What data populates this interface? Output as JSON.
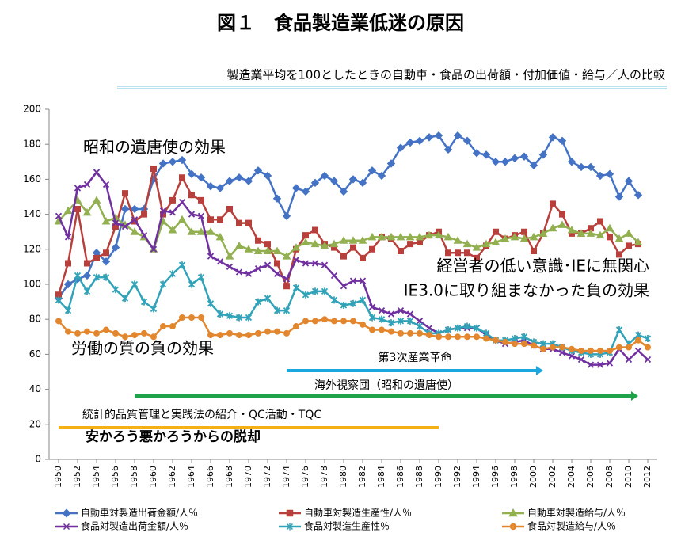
{
  "chart_data": {
    "type": "line",
    "title": "図１　食品製造業低迷の原因",
    "subtitle": "製造業平均を100としたときの自動車・食品の出荷額・付加価値・給与／人の比較",
    "x": [
      1950,
      1951,
      1952,
      1953,
      1954,
      1955,
      1956,
      1957,
      1958,
      1959,
      1960,
      1961,
      1962,
      1963,
      1964,
      1965,
      1966,
      1967,
      1968,
      1969,
      1970,
      1971,
      1972,
      1973,
      1974,
      1975,
      1976,
      1977,
      1978,
      1979,
      1980,
      1981,
      1982,
      1983,
      1984,
      1985,
      1986,
      1987,
      1988,
      1989,
      1990,
      1991,
      1992,
      1993,
      1994,
      1995,
      1996,
      1997,
      1998,
      1999,
      2000,
      2001,
      2002,
      2003,
      2004,
      2005,
      2006,
      2007,
      2008,
      2009,
      2010,
      2011,
      2012
    ],
    "xlim": [
      1949,
      2013
    ],
    "xticks": [
      1950,
      1952,
      1954,
      1956,
      1958,
      1960,
      1962,
      1964,
      1966,
      1968,
      1970,
      1972,
      1974,
      1976,
      1978,
      1980,
      1982,
      1984,
      1986,
      1988,
      1990,
      1992,
      1994,
      1996,
      1998,
      2000,
      2002,
      2004,
      2006,
      2008,
      2010,
      2012
    ],
    "ylim": [
      0,
      200
    ],
    "yticks": [
      0,
      20,
      40,
      60,
      80,
      100,
      120,
      140,
      160,
      180,
      200
    ],
    "series": [
      {
        "name": "自動車対製造出荷金額/人％",
        "color": "#4472c4",
        "marker": "diamond",
        "values": [
          92,
          100,
          103,
          105,
          118,
          113,
          121,
          143,
          143,
          143,
          160,
          169,
          170,
          171,
          163,
          161,
          156,
          155,
          159,
          161,
          159,
          165,
          162,
          149,
          139,
          155,
          153,
          158,
          162,
          159,
          153,
          160,
          158,
          165,
          162,
          169,
          178,
          181,
          182,
          184,
          185,
          177,
          185,
          182,
          175,
          174,
          170,
          170,
          172,
          173,
          168,
          174,
          184,
          182,
          170,
          167,
          167,
          162,
          163,
          150,
          159,
          151,
          null
        ]
      },
      {
        "name": "自動車対製造生産性/人％",
        "color": "#b8403c",
        "marker": "square",
        "values": [
          94,
          112,
          143,
          112,
          115,
          118,
          133,
          152,
          136,
          140,
          166,
          140,
          148,
          161,
          151,
          148,
          137,
          137,
          143,
          135,
          135,
          125,
          123,
          112,
          99,
          120,
          128,
          131,
          123,
          121,
          116,
          121,
          115,
          120,
          127,
          126,
          119,
          123,
          124,
          128,
          130,
          118,
          118,
          118,
          115,
          122,
          130,
          126,
          128,
          130,
          119,
          129,
          146,
          140,
          129,
          129,
          132,
          136,
          127,
          117,
          122,
          123,
          null
        ]
      },
      {
        "name": "自動車対製造給与/人％",
        "color": "#92b050",
        "marker": "triangle",
        "values": [
          136,
          142,
          148,
          141,
          148,
          136,
          138,
          134,
          130,
          127,
          120,
          136,
          131,
          137,
          130,
          130,
          130,
          127,
          116,
          122,
          120,
          119,
          119,
          119,
          116,
          121,
          124,
          123,
          122,
          123,
          125,
          125,
          125,
          127,
          127,
          127,
          127,
          127,
          127,
          128,
          128,
          127,
          125,
          123,
          121,
          123,
          124,
          126,
          127,
          126,
          127,
          129,
          132,
          134,
          131,
          129,
          129,
          128,
          132,
          126,
          129,
          124,
          null
        ]
      },
      {
        "name": "食品対製造出荷金額/人％",
        "color": "#7030a0",
        "marker": "x",
        "values": [
          139,
          127,
          155,
          157,
          164,
          157,
          135,
          133,
          137,
          128,
          120,
          142,
          141,
          147,
          140,
          139,
          116,
          113,
          110,
          107,
          106,
          109,
          111,
          106,
          103,
          114,
          112,
          112,
          111,
          105,
          99,
          102,
          102,
          87,
          85,
          83,
          85,
          83,
          79,
          75,
          72,
          74,
          75,
          75,
          75,
          71,
          68,
          66,
          67,
          68,
          65,
          63,
          63,
          61,
          59,
          57,
          54,
          54,
          55,
          63,
          57,
          62,
          57
        ]
      },
      {
        "name": "食品対製造生産性％",
        "color": "#31a3b8",
        "marker": "star",
        "values": [
          91,
          85,
          105,
          96,
          104,
          104,
          97,
          92,
          100,
          90,
          86,
          100,
          106,
          111,
          100,
          104,
          89,
          83,
          82,
          81,
          81,
          90,
          92,
          85,
          85,
          98,
          94,
          96,
          96,
          91,
          88,
          89,
          91,
          81,
          80,
          78,
          79,
          79,
          76,
          72,
          72,
          74,
          75,
          76,
          75,
          72,
          68,
          68,
          69,
          70,
          67,
          66,
          66,
          64,
          62,
          61,
          60,
          60,
          61,
          74,
          66,
          71,
          69
        ]
      },
      {
        "name": "食品対製造給与/人％",
        "color": "#e3872f",
        "marker": "circle",
        "values": [
          79,
          73,
          72,
          73,
          72,
          74,
          72,
          70,
          71,
          72,
          70,
          76,
          76,
          81,
          81,
          81,
          71,
          71,
          72,
          71,
          71,
          72,
          73,
          73,
          72,
          76,
          79,
          79,
          80,
          79,
          79,
          79,
          77,
          74,
          74,
          73,
          72,
          72,
          72,
          71,
          70,
          70,
          70,
          70,
          70,
          69,
          68,
          67,
          66,
          66,
          65,
          63,
          64,
          64,
          63,
          62,
          62,
          62,
          62,
          64,
          64,
          68,
          64
        ]
      }
    ],
    "annotations": [
      {
        "text": "昭和の遺唐使の効果",
        "color": "#000000"
      },
      {
        "text": "経営者の低い意識･IEに無関心",
        "color": "#000000"
      },
      {
        "text": "IE3.0に取り組まなかった負の効果",
        "color": "#000000"
      },
      {
        "text": "労働の質の負の効果",
        "color": "#000000"
      },
      {
        "text": "安かろう悪かろうからの脱却",
        "color": "#ff0000"
      }
    ],
    "spans": [
      {
        "label": "第3次産業革命",
        "start": 1974,
        "end": 2001,
        "color": "#1aa7e0"
      },
      {
        "label": "海外視察団（昭和の遺唐使）",
        "start": 1958,
        "end": 2011,
        "color": "#1ea34a"
      },
      {
        "label": "統計的品質管理と実践法の紹介・QC活動・TQC",
        "start": 1950,
        "end": 1990,
        "color": "#f5b016"
      }
    ],
    "grid": false,
    "legend": "bottom"
  }
}
